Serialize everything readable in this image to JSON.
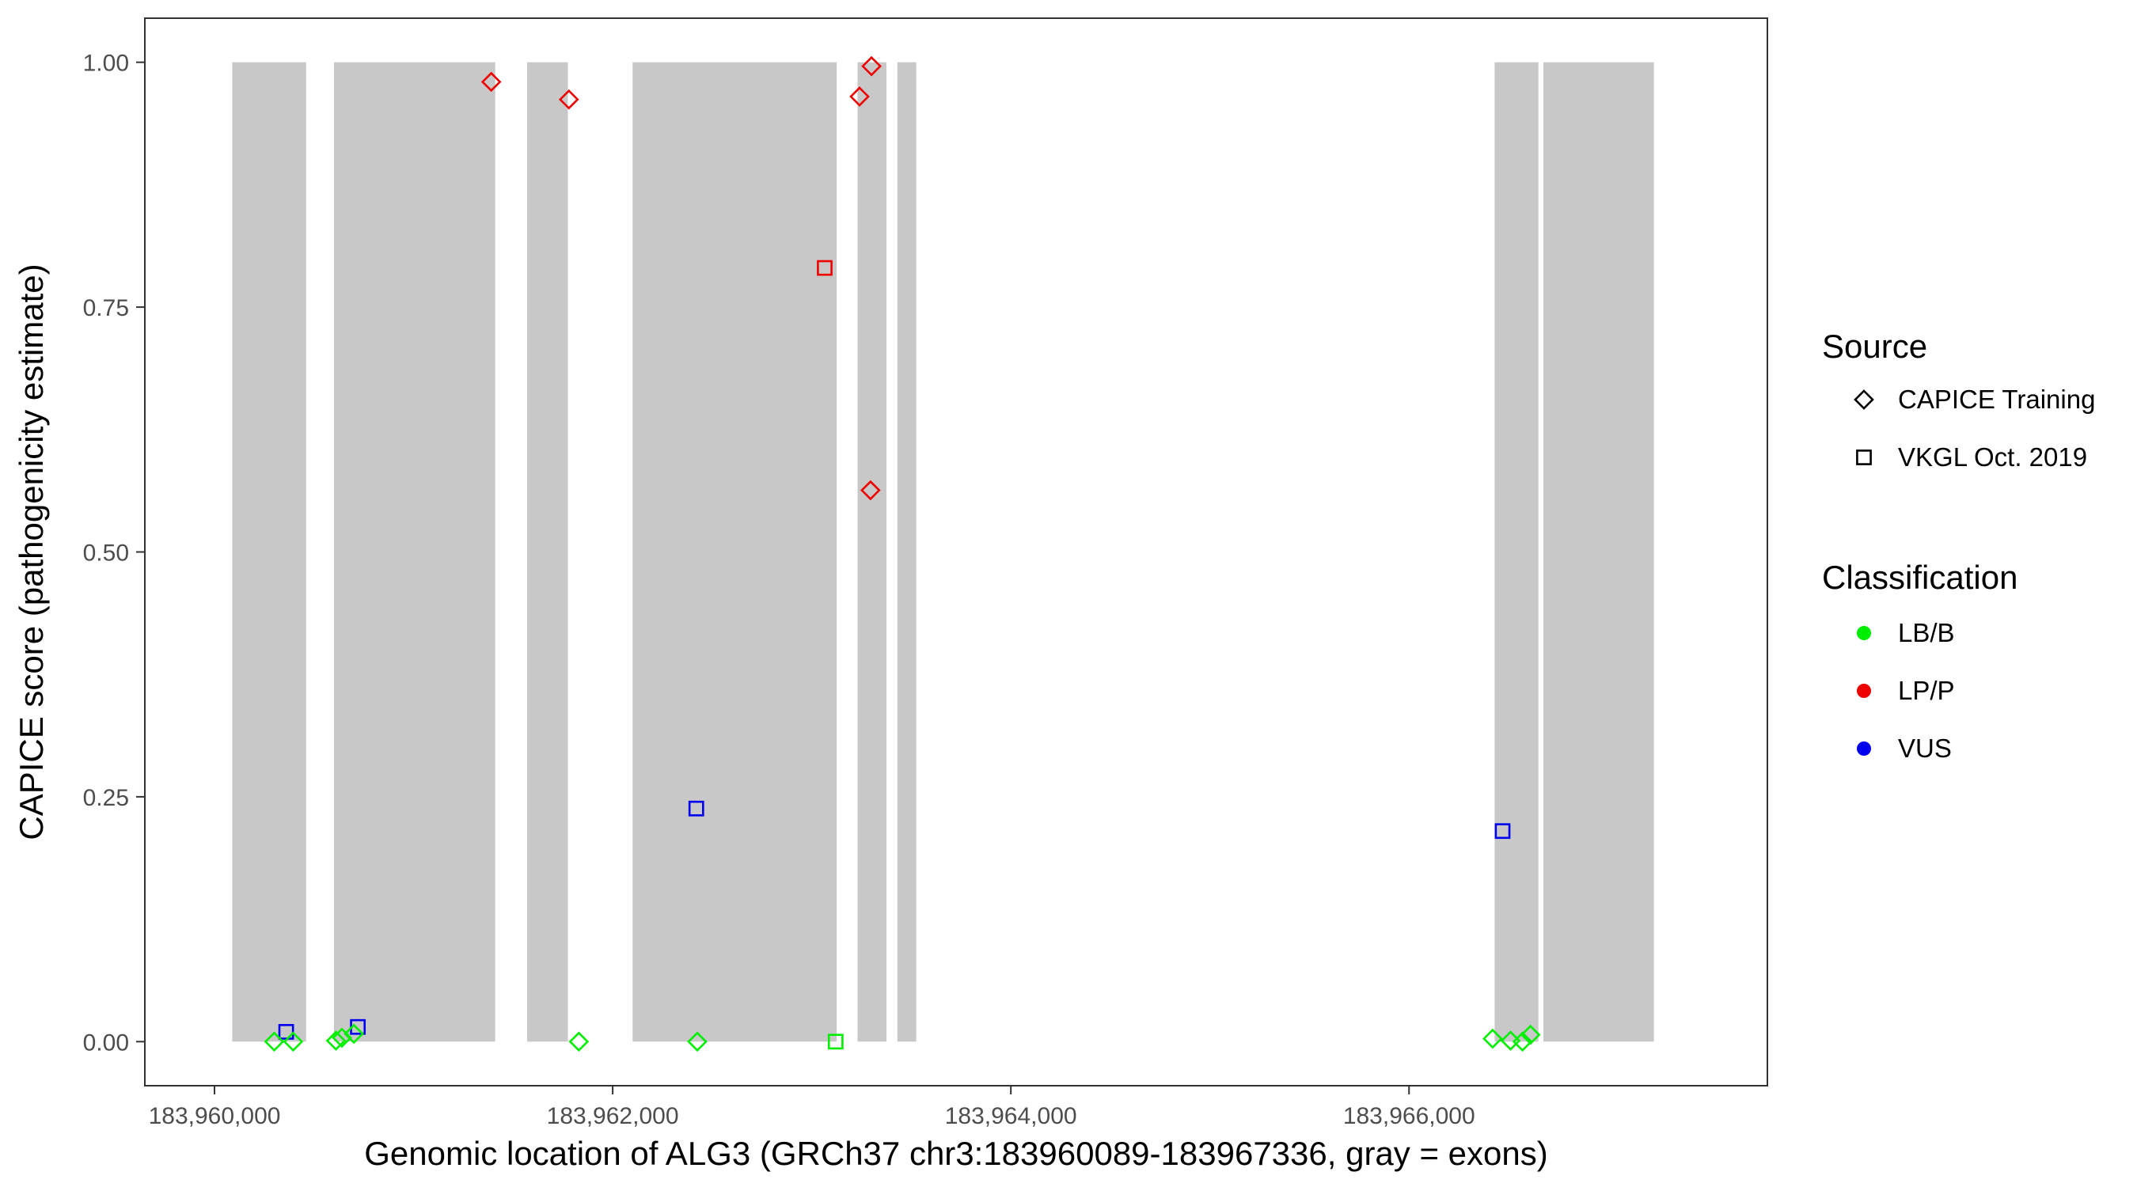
{
  "chart_data": {
    "type": "scatter",
    "xlabel": "Genomic location of ALG3 (GRCh37 chr3:183960089-183967336, gray = exons)",
    "ylabel": "CAPICE score (pathogenicity estimate)",
    "xlim": [
      183959650,
      183967800
    ],
    "ylim": [
      -0.045,
      1.045
    ],
    "x_ticks": [
      183960000,
      183962000,
      183964000,
      183966000
    ],
    "x_tick_labels": [
      "183,960,000",
      "183,962,000",
      "183,964,000",
      "183,966,000"
    ],
    "y_ticks": [
      0,
      0.25,
      0.5,
      0.75,
      1.0
    ],
    "y_tick_labels": [
      "0.00",
      "0.25",
      "0.50",
      "0.75",
      "1.00"
    ],
    "grid": false,
    "exon_color": "#c8c8c8",
    "exons": [
      {
        "start": 183960089,
        "end": 183960460
      },
      {
        "start": 183960600,
        "end": 183961410
      },
      {
        "start": 183961570,
        "end": 183961775
      },
      {
        "start": 183962100,
        "end": 183963125
      },
      {
        "start": 183963230,
        "end": 183963375
      },
      {
        "start": 183963430,
        "end": 183963525
      },
      {
        "start": 183966430,
        "end": 183966650
      },
      {
        "start": 183966675,
        "end": 183967230
      }
    ],
    "legend": {
      "placement": "right",
      "groups": [
        {
          "title": "Source",
          "items": [
            {
              "label": "CAPICE Training",
              "shape": "diamond"
            },
            {
              "label": "VKGL Oct. 2019",
              "shape": "square"
            }
          ]
        },
        {
          "title": "Classification",
          "items": [
            {
              "label": "LB/B",
              "color": "#00ee00"
            },
            {
              "label": "LP/P",
              "color": "#ee0000"
            },
            {
              "label": "VUS",
              "color": "#0000ee"
            }
          ]
        }
      ]
    },
    "class_colors": {
      "LB/B": "#00ee00",
      "LP/P": "#ee0000",
      "VUS": "#0000ee"
    },
    "points": [
      {
        "x": 183961390,
        "y": 0.98,
        "source": "CAPICE Training",
        "class": "LP/P"
      },
      {
        "x": 183961780,
        "y": 0.962,
        "source": "CAPICE Training",
        "class": "LP/P"
      },
      {
        "x": 183963240,
        "y": 0.965,
        "source": "CAPICE Training",
        "class": "LP/P"
      },
      {
        "x": 183963300,
        "y": 0.996,
        "source": "CAPICE Training",
        "class": "LP/P"
      },
      {
        "x": 183963295,
        "y": 0.563,
        "source": "CAPICE Training",
        "class": "LP/P"
      },
      {
        "x": 183963065,
        "y": 0.79,
        "source": "VKGL Oct. 2019",
        "class": "LP/P"
      },
      {
        "x": 183962420,
        "y": 0.238,
        "source": "VKGL Oct. 2019",
        "class": "VUS"
      },
      {
        "x": 183966470,
        "y": 0.215,
        "source": "VKGL Oct. 2019",
        "class": "VUS"
      },
      {
        "x": 183960360,
        "y": 0.01,
        "source": "VKGL Oct. 2019",
        "class": "VUS"
      },
      {
        "x": 183960720,
        "y": 0.015,
        "source": "VKGL Oct. 2019",
        "class": "VUS"
      },
      {
        "x": 183960300,
        "y": 0.0,
        "source": "CAPICE Training",
        "class": "LB/B"
      },
      {
        "x": 183960395,
        "y": 0.0,
        "source": "CAPICE Training",
        "class": "LB/B"
      },
      {
        "x": 183960610,
        "y": 0.001,
        "source": "CAPICE Training",
        "class": "LB/B"
      },
      {
        "x": 183960640,
        "y": 0.004,
        "source": "CAPICE Training",
        "class": "LB/B"
      },
      {
        "x": 183960700,
        "y": 0.008,
        "source": "CAPICE Training",
        "class": "LB/B"
      },
      {
        "x": 183961830,
        "y": 0.0,
        "source": "CAPICE Training",
        "class": "LB/B"
      },
      {
        "x": 183962425,
        "y": 0.0,
        "source": "CAPICE Training",
        "class": "LB/B"
      },
      {
        "x": 183963120,
        "y": 0.0,
        "source": "VKGL Oct. 2019",
        "class": "LB/B"
      },
      {
        "x": 183966420,
        "y": 0.003,
        "source": "CAPICE Training",
        "class": "LB/B"
      },
      {
        "x": 183966510,
        "y": 0.001,
        "source": "CAPICE Training",
        "class": "LB/B"
      },
      {
        "x": 183966570,
        "y": 0.0,
        "source": "CAPICE Training",
        "class": "LB/B"
      },
      {
        "x": 183966610,
        "y": 0.007,
        "source": "CAPICE Training",
        "class": "LB/B"
      }
    ]
  }
}
